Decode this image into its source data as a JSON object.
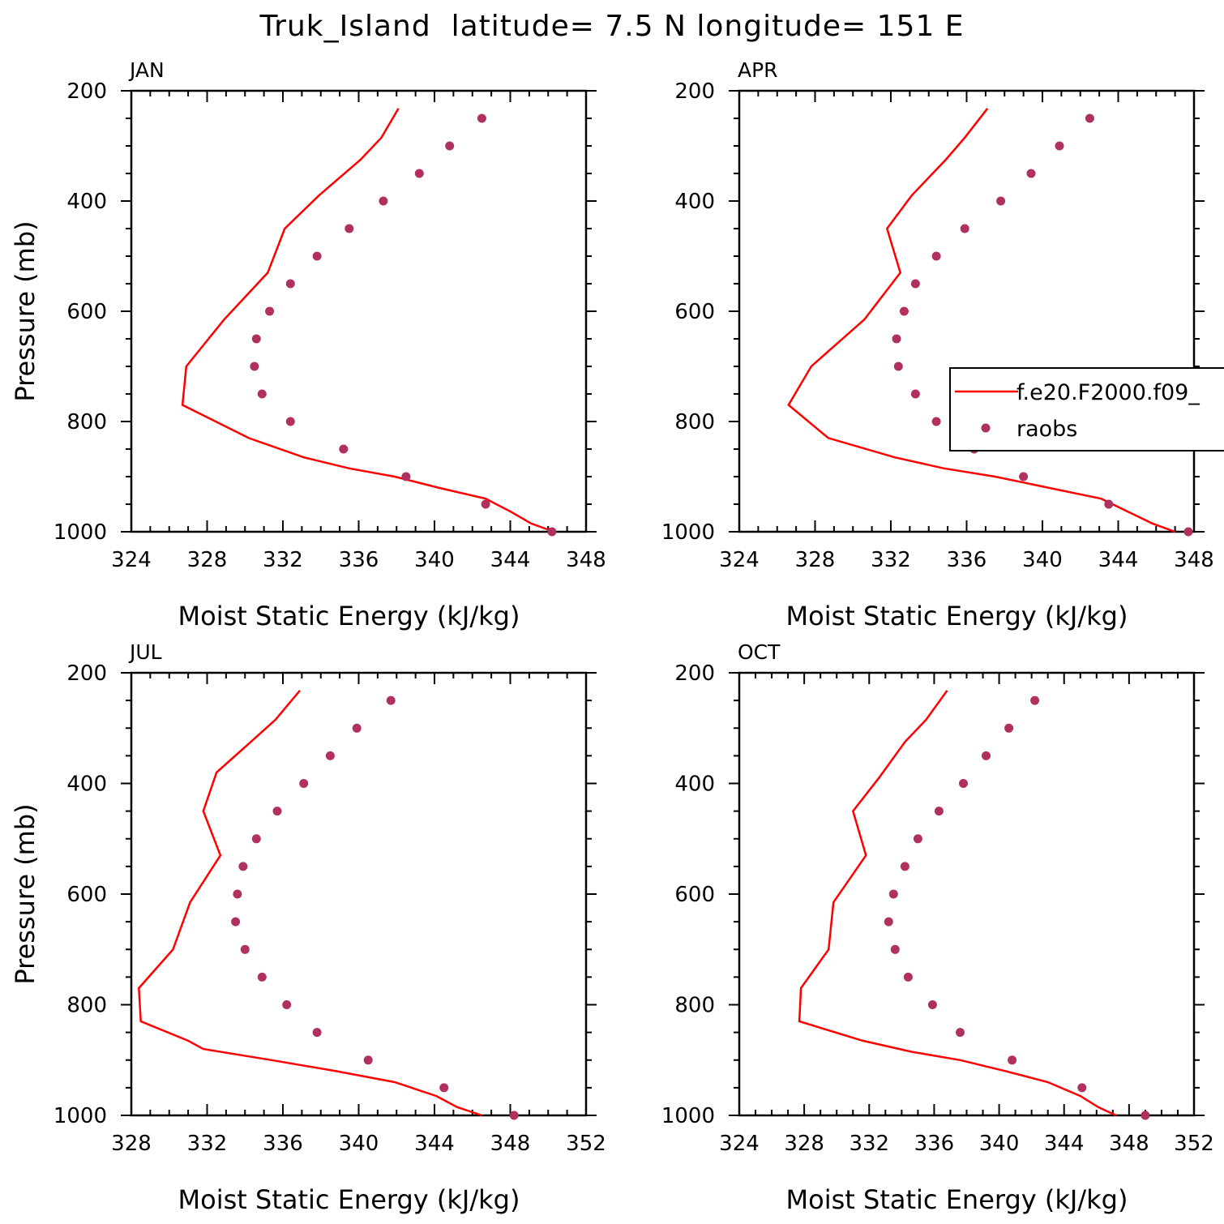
{
  "title": "Truk_Island  latitude= 7.5 N longitude= 151 E",
  "legend": {
    "entries": [
      {
        "label": "f.e20.F2000.f09_",
        "kind": "line",
        "color": "#ff0000"
      },
      {
        "label": "raobs",
        "kind": "marker",
        "color": "#b0305f"
      }
    ],
    "placement": "panel APR, right"
  },
  "colors": {
    "model": "#ff0000",
    "raobs": "#b0305f"
  },
  "chart_data": [
    {
      "type": "line",
      "panel": "JAN",
      "xlabel": "Moist Static Energy (kJ/kg)",
      "ylabel": "Pressure (mb)",
      "xlim": [
        324,
        348
      ],
      "ylim": [
        1000,
        200
      ],
      "xticks": [
        "324",
        "328",
        "332",
        "336",
        "340",
        "344",
        "348"
      ],
      "yticks": [
        "200",
        "400",
        "600",
        "800",
        "1000"
      ],
      "series": [
        {
          "name": "f.e20.F2000.f09_",
          "kind": "line",
          "points": [
            [
              346.3,
              1000
            ],
            [
              345.1,
              985
            ],
            [
              344.1,
              965
            ],
            [
              342.7,
              940
            ],
            [
              340.2,
              920
            ],
            [
              337.9,
              900
            ],
            [
              335.5,
              885
            ],
            [
              333.1,
              865
            ],
            [
              330.2,
              830
            ],
            [
              326.7,
              770
            ],
            [
              326.9,
              700
            ],
            [
              328.9,
              615
            ],
            [
              331.2,
              530
            ],
            [
              332.1,
              450
            ],
            [
              333.9,
              390
            ],
            [
              336.1,
              325
            ],
            [
              337.2,
              285
            ],
            [
              338.1,
              232
            ]
          ]
        },
        {
          "name": "raobs",
          "kind": "scatter",
          "points": [
            [
              346.2,
              1000
            ],
            [
              342.7,
              950
            ],
            [
              338.5,
              900
            ],
            [
              335.2,
              850
            ],
            [
              332.4,
              800
            ],
            [
              330.9,
              750
            ],
            [
              330.5,
              700
            ],
            [
              330.6,
              650
            ],
            [
              331.3,
              600
            ],
            [
              332.4,
              550
            ],
            [
              333.8,
              500
            ],
            [
              335.5,
              450
            ],
            [
              337.3,
              400
            ],
            [
              339.2,
              350
            ],
            [
              340.8,
              300
            ],
            [
              342.5,
              250
            ]
          ]
        }
      ]
    },
    {
      "type": "line",
      "panel": "APR",
      "xlabel": "Moist Static Energy (kJ/kg)",
      "ylabel": "",
      "xlim": [
        324,
        348
      ],
      "ylim": [
        1000,
        200
      ],
      "xticks": [
        "324",
        "328",
        "332",
        "336",
        "340",
        "344",
        "348"
      ],
      "yticks": [
        "200",
        "400",
        "600",
        "800",
        "1000"
      ],
      "series": [
        {
          "name": "f.e20.F2000.f09_",
          "kind": "line",
          "points": [
            [
              347.0,
              1000
            ],
            [
              345.8,
              985
            ],
            [
              344.6,
              965
            ],
            [
              343.1,
              940
            ],
            [
              340.3,
              920
            ],
            [
              337.5,
              900
            ],
            [
              334.8,
              885
            ],
            [
              332.2,
              865
            ],
            [
              328.7,
              830
            ],
            [
              326.6,
              770
            ],
            [
              327.8,
              700
            ],
            [
              330.6,
              615
            ],
            [
              332.5,
              530
            ],
            [
              331.8,
              450
            ],
            [
              333.1,
              390
            ],
            [
              334.9,
              325
            ],
            [
              335.9,
              285
            ],
            [
              337.1,
              232
            ]
          ]
        },
        {
          "name": "raobs",
          "kind": "scatter",
          "points": [
            [
              347.7,
              1000
            ],
            [
              343.5,
              950
            ],
            [
              339.0,
              900
            ],
            [
              336.4,
              850
            ],
            [
              334.4,
              800
            ],
            [
              333.3,
              750
            ],
            [
              332.4,
              700
            ],
            [
              332.3,
              650
            ],
            [
              332.7,
              600
            ],
            [
              333.3,
              550
            ],
            [
              334.4,
              500
            ],
            [
              335.9,
              450
            ],
            [
              337.8,
              400
            ],
            [
              339.4,
              350
            ],
            [
              340.9,
              300
            ],
            [
              342.5,
              250
            ]
          ]
        }
      ]
    },
    {
      "type": "line",
      "panel": "JUL",
      "xlabel": "Moist Static Energy (kJ/kg)",
      "ylabel": "Pressure (mb)",
      "xlim": [
        328,
        352
      ],
      "ylim": [
        1000,
        200
      ],
      "xticks": [
        "328",
        "332",
        "336",
        "340",
        "344",
        "348",
        "352"
      ],
      "yticks": [
        "200",
        "400",
        "600",
        "800",
        "1000"
      ],
      "series": [
        {
          "name": "f.e20.F2000.f09_",
          "kind": "line",
          "points": [
            [
              346.5,
              1000
            ],
            [
              345.2,
              985
            ],
            [
              344.1,
              965
            ],
            [
              341.9,
              940
            ],
            [
              338.8,
              920
            ],
            [
              335.4,
              900
            ],
            [
              331.8,
              880
            ],
            [
              331.0,
              865
            ],
            [
              328.5,
              830
            ],
            [
              328.4,
              770
            ],
            [
              330.2,
              700
            ],
            [
              331.1,
              615
            ],
            [
              332.7,
              530
            ],
            [
              331.8,
              450
            ],
            [
              332.5,
              380
            ],
            [
              334.3,
              325
            ],
            [
              335.6,
              285
            ],
            [
              336.9,
              232
            ]
          ]
        },
        {
          "name": "raobs",
          "kind": "scatter",
          "points": [
            [
              348.2,
              1000
            ],
            [
              344.5,
              950
            ],
            [
              340.5,
              900
            ],
            [
              337.8,
              850
            ],
            [
              336.2,
              800
            ],
            [
              334.9,
              750
            ],
            [
              334.0,
              700
            ],
            [
              333.5,
              650
            ],
            [
              333.6,
              600
            ],
            [
              333.9,
              550
            ],
            [
              334.6,
              500
            ],
            [
              335.7,
              450
            ],
            [
              337.1,
              400
            ],
            [
              338.5,
              350
            ],
            [
              339.9,
              300
            ],
            [
              341.7,
              250
            ]
          ]
        }
      ]
    },
    {
      "type": "line",
      "panel": "OCT",
      "xlabel": "Moist Static Energy (kJ/kg)",
      "ylabel": "",
      "xlim": [
        324,
        352
      ],
      "ylim": [
        1000,
        200
      ],
      "xticks": [
        "324",
        "328",
        "332",
        "336",
        "340",
        "344",
        "348",
        "352"
      ],
      "yticks": [
        "200",
        "400",
        "600",
        "800",
        "1000"
      ],
      "series": [
        {
          "name": "f.e20.F2000.f09_",
          "kind": "line",
          "points": [
            [
              347.2,
              1000
            ],
            [
              346.1,
              985
            ],
            [
              345.0,
              965
            ],
            [
              343.0,
              940
            ],
            [
              340.4,
              920
            ],
            [
              337.6,
              900
            ],
            [
              334.6,
              885
            ],
            [
              331.6,
              865
            ],
            [
              327.7,
              830
            ],
            [
              327.8,
              770
            ],
            [
              329.5,
              700
            ],
            [
              329.8,
              615
            ],
            [
              331.8,
              530
            ],
            [
              331.0,
              450
            ],
            [
              332.6,
              390
            ],
            [
              334.2,
              325
            ],
            [
              335.5,
              285
            ],
            [
              336.8,
              232
            ]
          ]
        },
        {
          "name": "raobs",
          "kind": "scatter",
          "points": [
            [
              349.0,
              1000
            ],
            [
              345.1,
              950
            ],
            [
              340.8,
              900
            ],
            [
              337.6,
              850
            ],
            [
              335.9,
              800
            ],
            [
              334.4,
              750
            ],
            [
              333.6,
              700
            ],
            [
              333.2,
              650
            ],
            [
              333.5,
              600
            ],
            [
              334.2,
              550
            ],
            [
              335.0,
              500
            ],
            [
              336.3,
              450
            ],
            [
              337.8,
              400
            ],
            [
              339.2,
              350
            ],
            [
              340.6,
              300
            ],
            [
              342.2,
              250
            ]
          ]
        }
      ]
    }
  ]
}
